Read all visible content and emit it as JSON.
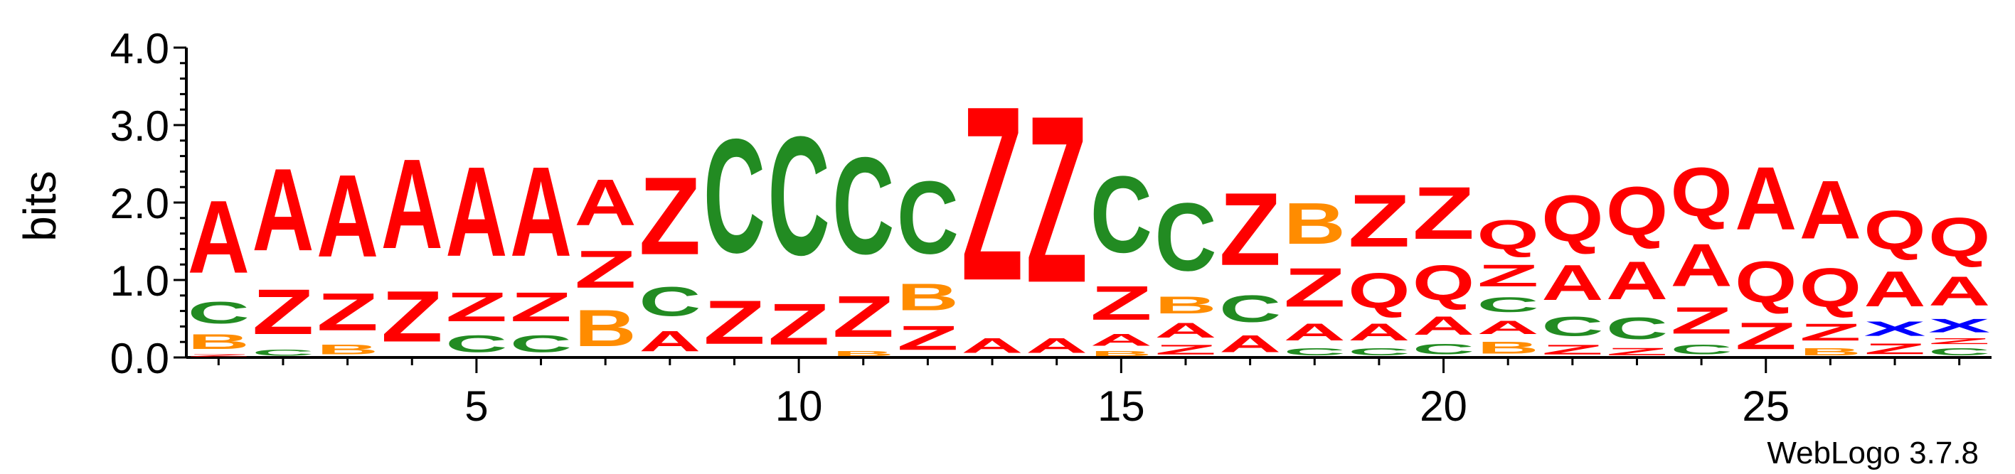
{
  "chart_data": {
    "type": "sequence-logo",
    "ylabel": "bits",
    "ylim": [
      0,
      4
    ],
    "y_ticks": [
      "0.0",
      "1.0",
      "2.0",
      "3.0",
      "4.0"
    ],
    "x_ticks": [
      "5",
      "10",
      "15",
      "20",
      "25"
    ],
    "x_tick_values": [
      5,
      10,
      15,
      20,
      25
    ],
    "credit": "WebLogo 3.7.8",
    "colors": {
      "A": "#ff0000",
      "Z": "#ff0000",
      "Q": "#ff0000",
      "C": "#228b22",
      "B": "#ff8c00",
      "X": "#0000ff"
    },
    "positions": [
      {
        "pos": 1,
        "stack": [
          [
            "Z",
            0.05
          ],
          [
            "B",
            0.3
          ],
          [
            "C",
            0.45
          ],
          [
            "A",
            1.5
          ]
        ]
      },
      {
        "pos": 2,
        "stack": [
          [
            "C",
            0.12
          ],
          [
            "Z",
            0.93
          ],
          [
            "A",
            1.7
          ]
        ]
      },
      {
        "pos": 3,
        "stack": [
          [
            "B",
            0.2
          ],
          [
            "Z",
            0.77
          ],
          [
            "A",
            1.7
          ]
        ]
      },
      {
        "pos": 4,
        "stack": [
          [
            "Z",
            1.05
          ],
          [
            "A",
            1.85
          ]
        ]
      },
      {
        "pos": 5,
        "stack": [
          [
            "C",
            0.35
          ],
          [
            "Z",
            0.6
          ],
          [
            "A",
            1.85
          ]
        ]
      },
      {
        "pos": 6,
        "stack": [
          [
            "C",
            0.35
          ],
          [
            "Z",
            0.6
          ],
          [
            "A",
            1.85
          ]
        ]
      },
      {
        "pos": 7,
        "stack": [
          [
            "B",
            0.75
          ],
          [
            "Z",
            0.77
          ],
          [
            "A",
            0.95
          ]
        ]
      },
      {
        "pos": 8,
        "stack": [
          [
            "A",
            0.42
          ],
          [
            "C",
            0.6
          ],
          [
            "Z",
            1.6
          ]
        ]
      },
      {
        "pos": 9,
        "stack": [
          [
            "Z",
            0.9
          ],
          [
            "C",
            2.35
          ]
        ]
      },
      {
        "pos": 10,
        "stack": [
          [
            "Z",
            0.85
          ],
          [
            "C",
            2.45
          ]
        ]
      },
      {
        "pos": 11,
        "stack": [
          [
            "B",
            0.1
          ],
          [
            "Z",
            0.85
          ],
          [
            "C",
            2.0
          ]
        ]
      },
      {
        "pos": 12,
        "stack": [
          [
            "Z",
            0.5
          ],
          [
            "B",
            0.55
          ],
          [
            "C",
            1.5
          ]
        ]
      },
      {
        "pos": 13,
        "stack": [
          [
            "A",
            0.3
          ],
          [
            "Z",
            3.6
          ]
        ]
      },
      {
        "pos": 14,
        "stack": [
          [
            "A",
            0.3
          ],
          [
            "Z",
            3.45
          ]
        ]
      },
      {
        "pos": 15,
        "stack": [
          [
            "B",
            0.1
          ],
          [
            "A",
            0.25
          ],
          [
            "Z",
            0.7
          ],
          [
            "C",
            1.58
          ]
        ]
      },
      {
        "pos": 16,
        "stack": [
          [
            "Z",
            0.2
          ],
          [
            "A",
            0.3
          ],
          [
            "B",
            0.35
          ],
          [
            "C",
            1.4
          ]
        ]
      },
      {
        "pos": 17,
        "stack": [
          [
            "A",
            0.35
          ],
          [
            "C",
            0.55
          ],
          [
            "Z",
            1.5
          ]
        ]
      },
      {
        "pos": 18,
        "stack": [
          [
            "C",
            0.15
          ],
          [
            "A",
            0.35
          ],
          [
            "Z",
            0.8
          ],
          [
            "B",
            0.85
          ]
        ]
      },
      {
        "pos": 19,
        "stack": [
          [
            "C",
            0.15
          ],
          [
            "A",
            0.35
          ],
          [
            "Q",
            0.72
          ],
          [
            "Z",
            1.08
          ]
        ]
      },
      {
        "pos": 20,
        "stack": [
          [
            "C",
            0.22
          ],
          [
            "A",
            0.38
          ],
          [
            "Q",
            0.72
          ],
          [
            "Z",
            1.08
          ]
        ]
      },
      {
        "pos": 21,
        "stack": [
          [
            "B",
            0.25
          ],
          [
            "A",
            0.28
          ],
          [
            "C",
            0.3
          ],
          [
            "Z",
            0.45
          ],
          [
            "Q",
            0.6
          ]
        ]
      },
      {
        "pos": 22,
        "stack": [
          [
            "Z",
            0.2
          ],
          [
            "C",
            0.4
          ],
          [
            "A",
            0.72
          ],
          [
            "Q",
            0.95
          ]
        ]
      },
      {
        "pos": 23,
        "stack": [
          [
            "Z",
            0.15
          ],
          [
            "C",
            0.45
          ],
          [
            "A",
            0.78
          ],
          [
            "Q",
            1.0
          ]
        ]
      },
      {
        "pos": 24,
        "stack": [
          [
            "C",
            0.2
          ],
          [
            "Z",
            0.55
          ],
          [
            "A",
            0.88
          ],
          [
            "Q",
            1.0
          ]
        ]
      },
      {
        "pos": 25,
        "stack": [
          [
            "Z",
            0.55
          ],
          [
            "Q",
            0.85
          ],
          [
            "A",
            1.3
          ]
        ]
      },
      {
        "pos": 26,
        "stack": [
          [
            "B",
            0.15
          ],
          [
            "Z",
            0.35
          ],
          [
            "Q",
            0.8
          ],
          [
            "A",
            1.2
          ]
        ]
      },
      {
        "pos": 27,
        "stack": [
          [
            "Z",
            0.22
          ],
          [
            "X",
            0.3
          ],
          [
            "A",
            0.72
          ],
          [
            "Q",
            0.8
          ]
        ]
      },
      {
        "pos": 28,
        "stack": [
          [
            "C",
            0.15
          ],
          [
            "Z",
            0.12
          ],
          [
            "X",
            0.28
          ],
          [
            "A",
            0.6
          ],
          [
            "Q",
            0.8
          ]
        ]
      }
    ]
  }
}
